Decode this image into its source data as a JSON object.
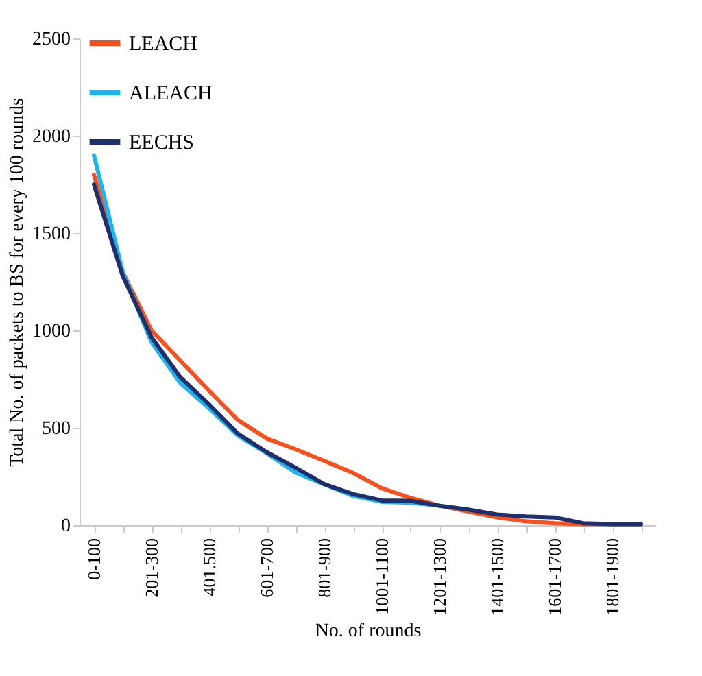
{
  "chart_data": {
    "type": "line",
    "xlabel": "No. of rounds",
    "ylabel": "Total No. of packets to BS for every 100 rounds",
    "categories": [
      "0-100",
      null,
      "201-300",
      null,
      "401.500",
      null,
      "601-700",
      null,
      "801-900",
      null,
      "1001-1100",
      null,
      "1201-1300",
      null,
      "1401-1500",
      null,
      "1601-1700",
      null,
      "1801-1900",
      null
    ],
    "series": [
      {
        "name": "LEACH",
        "color": "#f4511e",
        "values": [
          1800,
          1300,
          1000,
          845,
          690,
          540,
          445,
          390,
          330,
          268,
          190,
          140,
          100,
          70,
          40,
          20,
          10,
          5,
          5,
          5
        ]
      },
      {
        "name": "ALEACH",
        "color": "#1eb4f0",
        "values": [
          1900,
          1300,
          940,
          730,
          600,
          460,
          370,
          270,
          210,
          150,
          120,
          115,
          100,
          80,
          null,
          null,
          null,
          null,
          null,
          null
        ]
      },
      {
        "name": "EECHS",
        "color": "#1f2f6b",
        "values": [
          1750,
          1280,
          965,
          760,
          620,
          470,
          375,
          295,
          211,
          160,
          127,
          125,
          100,
          80,
          55,
          45,
          40,
          10,
          5,
          5
        ]
      }
    ],
    "ylim": [
      0,
      2500
    ],
    "yticks": [
      0,
      500,
      1000,
      1500,
      2000,
      2500
    ],
    "grid": false,
    "legend": "top left",
    "marker": "none",
    "line_style": "solid"
  }
}
